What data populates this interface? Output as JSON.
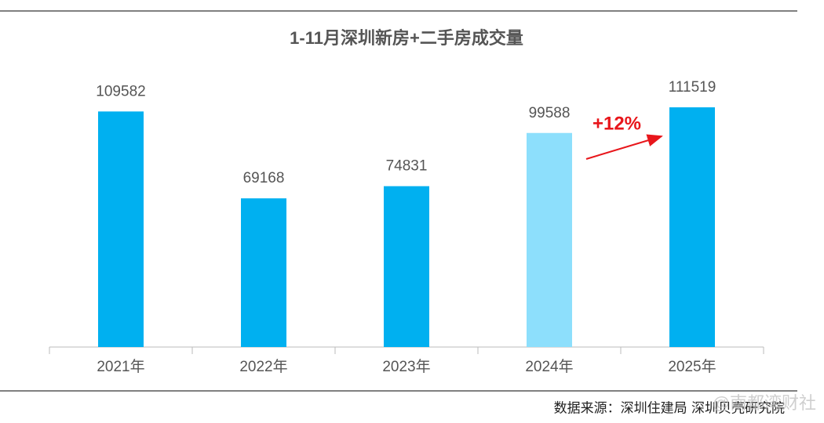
{
  "chart_data": {
    "type": "bar",
    "title": "1-11月深圳新房+二手房成交量",
    "categories": [
      "2021年",
      "2022年",
      "2023年",
      "2024年",
      "2025年"
    ],
    "values": [
      109582,
      69168,
      74831,
      99588,
      111519
    ],
    "colors": [
      "#00b0f0",
      "#00b0f0",
      "#00b0f0",
      "#8ddffc",
      "#00b0f0"
    ],
    "annotation": "+12%",
    "annotation_color": "#e8161b",
    "source": "数据来源：深圳住建局 深圳贝壳研究院",
    "watermark": "@南都湾财社"
  }
}
